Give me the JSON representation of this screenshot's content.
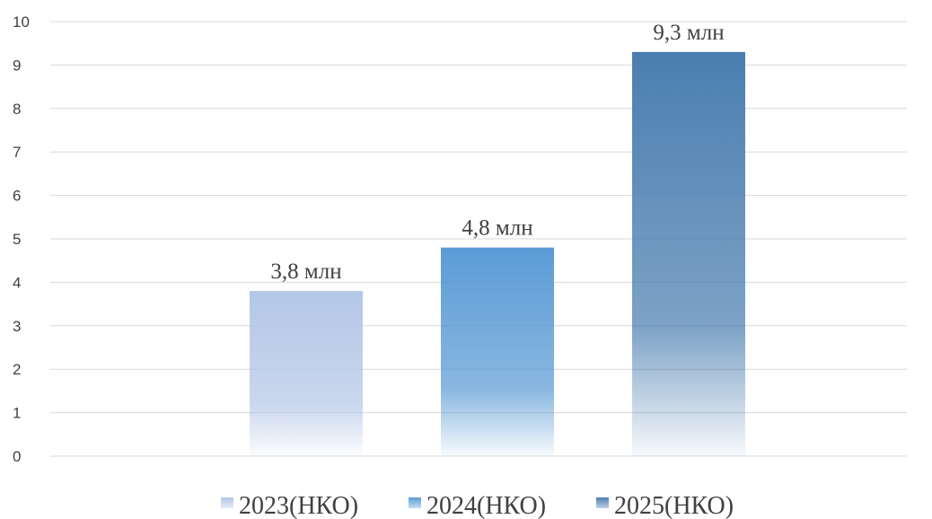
{
  "chart_data": {
    "type": "bar",
    "title": "",
    "xlabel": "",
    "ylabel": "",
    "ylim": [
      0,
      10
    ],
    "yticks": [
      0,
      1,
      2,
      3,
      4,
      5,
      6,
      7,
      8,
      9,
      10
    ],
    "grid": true,
    "legend": "bottom",
    "series": [
      {
        "name": "2023(НКО)",
        "value": 3.8,
        "label": "3,8 млн",
        "color": "#b4c7e7"
      },
      {
        "name": "2024(НКО)",
        "value": 4.8,
        "label": "4,8 млн",
        "color": "#5b9bd5"
      },
      {
        "name": "2025(НКО)",
        "value": 9.3,
        "label": "9,3 млн",
        "color": "#4a7eb0"
      }
    ]
  }
}
